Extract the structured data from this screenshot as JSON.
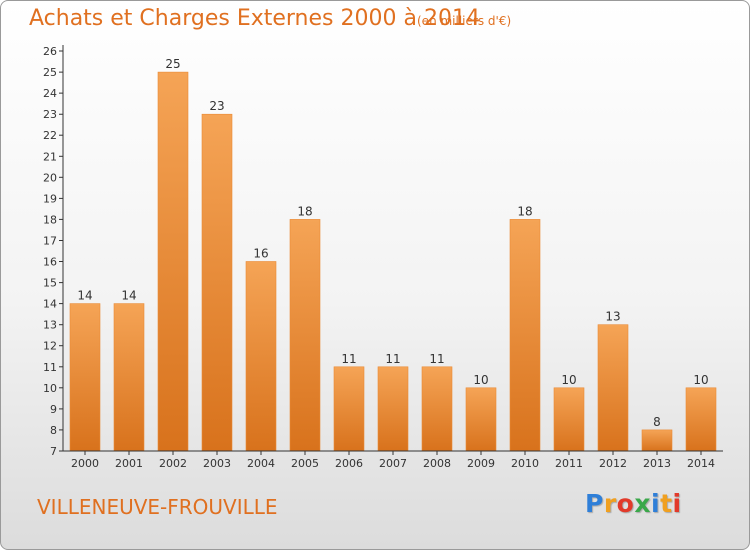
{
  "title": "Achats et Charges Externes 2000 à 2014",
  "subtitle": "(en milliers d'€)",
  "commune": "VILLENEUVE-FROUVILLE",
  "logo": {
    "letters": [
      "P",
      "r",
      "o",
      "x",
      "i",
      "t",
      "i"
    ],
    "colors": [
      "#2f7fd8",
      "#f0a020",
      "#e23a2a",
      "#3aa84a",
      "#2f7fd8",
      "#f0a020",
      "#e23a2a"
    ]
  },
  "colors": {
    "bar_top": "#f5a456",
    "bar_bottom": "#d8721c",
    "accent": "#e07020",
    "axis": "#333333"
  },
  "chart_data": {
    "type": "bar",
    "categories": [
      "2000",
      "2001",
      "2002",
      "2003",
      "2004",
      "2005",
      "2006",
      "2007",
      "2008",
      "2009",
      "2010",
      "2011",
      "2012",
      "2013",
      "2014"
    ],
    "values": [
      14,
      14,
      25,
      23,
      16,
      18,
      11,
      11,
      11,
      10,
      18,
      10,
      13,
      8,
      10
    ],
    "ylim": [
      7,
      26
    ],
    "yticks": [
      7,
      8,
      9,
      10,
      11,
      12,
      13,
      14,
      15,
      16,
      17,
      18,
      19,
      20,
      21,
      22,
      23,
      24,
      25,
      26
    ],
    "xlabel": "",
    "ylabel": "",
    "grid": false,
    "data_labels": true
  }
}
